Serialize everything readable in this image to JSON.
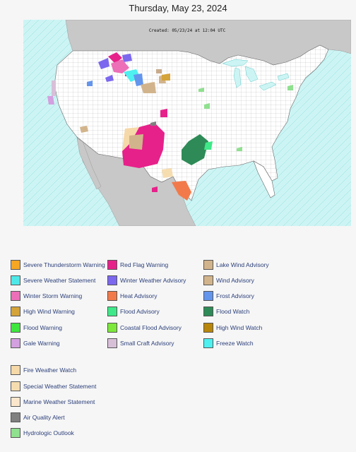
{
  "title": "Thursday, May 23, 2024",
  "map": {
    "created_stamp": "Created: 05/23/24 at 12:04 UTC",
    "colors": {
      "ocean": "#cdf4f4",
      "land": "#ffffff",
      "foreign_land": "#c8c8c8",
      "zone_lines": "#5fd0d0",
      "county_lines": "#9a9a9a"
    }
  },
  "legend": {
    "columns": [
      [
        {
          "label": "Severe Thunderstorm Warning",
          "color": "#f5a623"
        },
        {
          "label": "Severe Weather Statement",
          "color": "#4ee8e8"
        },
        {
          "label": "Winter Storm Warning",
          "color": "#ec6fb8"
        },
        {
          "label": "High Wind Warning",
          "color": "#d4a33a"
        },
        {
          "label": "Flood Warning",
          "color": "#3ee63e"
        },
        {
          "label": "Gale Warning",
          "color": "#d3a0e0"
        }
      ],
      [
        {
          "label": "Red Flag Warning",
          "color": "#e6218a"
        },
        {
          "label": "Winter Weather Advisory",
          "color": "#7b68ee"
        },
        {
          "label": "Heat Advisory",
          "color": "#f27a4a"
        },
        {
          "label": "Flood Advisory",
          "color": "#3fe888"
        },
        {
          "label": "Coastal Flood Advisory",
          "color": "#7ce83a"
        },
        {
          "label": "Small Craft Advisory",
          "color": "#d8bfd8"
        }
      ],
      [
        {
          "label": "Lake Wind Advisory",
          "color": "#d2b48c"
        },
        {
          "label": "Wind Advisory",
          "color": "#d2b48c"
        },
        {
          "label": "Frost Advisory",
          "color": "#6495ed"
        },
        {
          "label": "Flood Watch",
          "color": "#2e8b57"
        },
        {
          "label": "High Wind Watch",
          "color": "#b8860b"
        },
        {
          "label": "Freeze Watch",
          "color": "#4ef0f0"
        }
      ]
    ],
    "extra": [
      {
        "label": "Fire Weather Watch",
        "color": "#f6d9a8"
      },
      {
        "label": "Special Weather Statement",
        "color": "#f6ddb0"
      },
      {
        "label": "Marine Weather Statement",
        "color": "#fbe6cc"
      },
      {
        "label": "Air Quality Alert",
        "color": "#808080"
      },
      {
        "label": "Hydrologic Outlook",
        "color": "#8fe08f"
      }
    ]
  }
}
